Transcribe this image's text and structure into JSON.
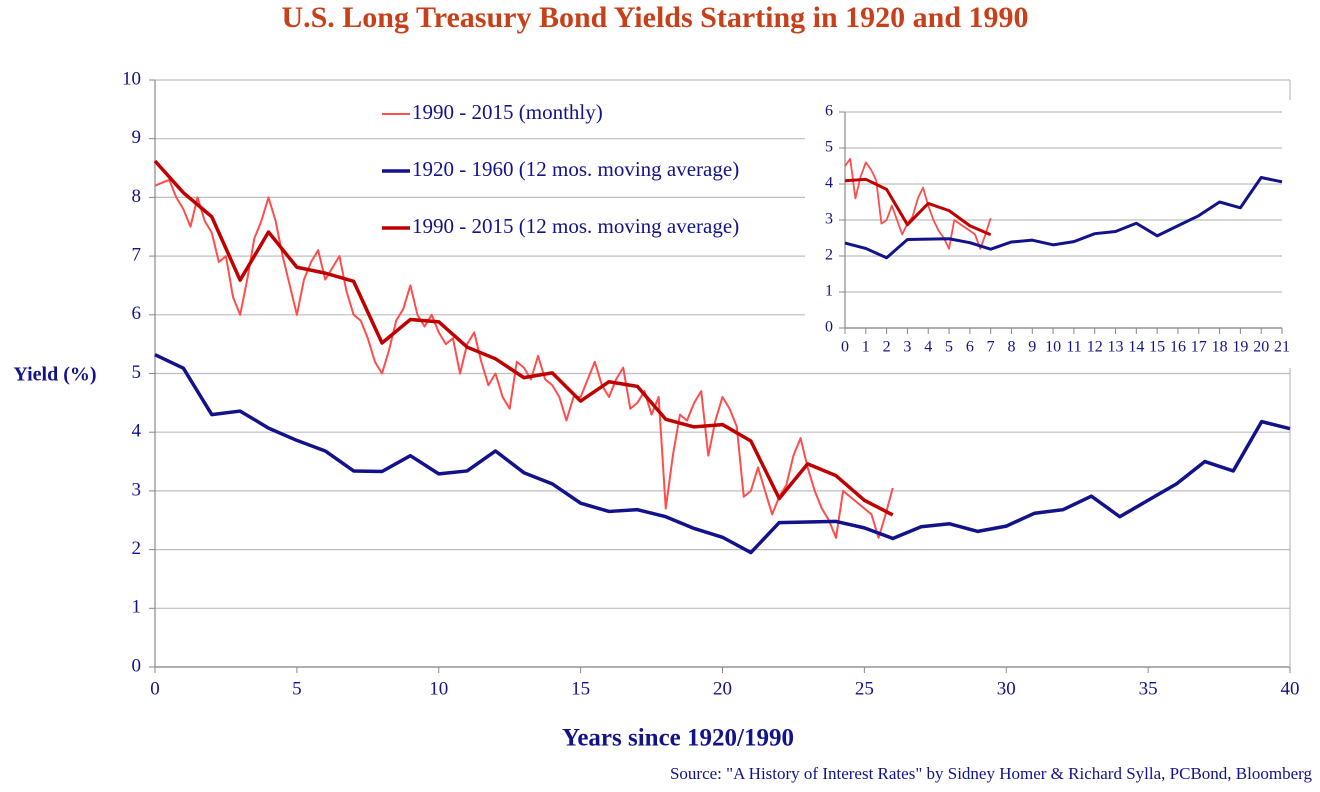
{
  "chart_data": [
    {
      "type": "line",
      "title": "U.S. Long Treasury Bond Yields Starting in 1920 and 1990",
      "y_label": "Yield (%)",
      "x_label": "Years since 1920/1990",
      "source": "Source: \"A History of Interest Rates\" by Sidney Homer & Richard Sylla, PCBond, Bloomberg",
      "xlim": [
        0,
        40
      ],
      "xticks": [
        0,
        5,
        10,
        15,
        20,
        25,
        30,
        35,
        40
      ],
      "ylim": [
        0,
        10
      ],
      "yticks": [
        0,
        1,
        2,
        3,
        4,
        5,
        6,
        7,
        8,
        9,
        10
      ],
      "grid": true,
      "series": [
        {
          "name": "1990 - 2015 (monthly)",
          "color": "#ff4d4d",
          "width": 2,
          "x": [
            0,
            0.25,
            0.5,
            0.75,
            1,
            1.25,
            1.5,
            1.75,
            2,
            2.25,
            2.5,
            2.75,
            3,
            3.25,
            3.5,
            3.75,
            4,
            4.25,
            4.5,
            4.75,
            5,
            5.25,
            5.5,
            5.75,
            6,
            6.25,
            6.5,
            6.75,
            7,
            7.25,
            7.5,
            7.75,
            8,
            8.25,
            8.5,
            8.75,
            9,
            9.25,
            9.5,
            9.75,
            10,
            10.25,
            10.5,
            10.75,
            11,
            11.25,
            11.5,
            11.75,
            12,
            12.25,
            12.5,
            12.75,
            13,
            13.25,
            13.5,
            13.75,
            14,
            14.25,
            14.5,
            14.75,
            15,
            15.25,
            15.5,
            15.75,
            16,
            16.25,
            16.5,
            16.75,
            17,
            17.25,
            17.5,
            17.75,
            18,
            18.25,
            18.5,
            18.75,
            19,
            19.25,
            19.5,
            19.75,
            20,
            20.25,
            20.5,
            20.75,
            21,
            21.25,
            21.5,
            21.75,
            22,
            22.25,
            22.5,
            22.75,
            23,
            23.25,
            23.5,
            23.75,
            24,
            24.25,
            24.5,
            24.75,
            25,
            25.25,
            25.5,
            25.75,
            26
          ],
          "values": [
            8.2,
            8.25,
            8.3,
            8.0,
            7.8,
            7.5,
            8.0,
            7.6,
            7.4,
            6.9,
            7.0,
            6.3,
            6.0,
            6.6,
            7.3,
            7.6,
            8.0,
            7.6,
            7.0,
            6.5,
            6.0,
            6.6,
            6.9,
            7.1,
            6.6,
            6.8,
            7.0,
            6.4,
            6.0,
            5.9,
            5.6,
            5.2,
            5.0,
            5.4,
            5.9,
            6.1,
            6.5,
            6.0,
            5.8,
            6.0,
            5.7,
            5.5,
            5.6,
            5.0,
            5.5,
            5.7,
            5.2,
            4.8,
            5.0,
            4.6,
            4.4,
            5.2,
            5.1,
            4.9,
            5.3,
            4.9,
            4.8,
            4.6,
            4.2,
            4.6,
            4.6,
            4.9,
            5.2,
            4.8,
            4.6,
            4.9,
            5.1,
            4.4,
            4.5,
            4.7,
            4.3,
            4.6,
            2.7,
            3.6,
            4.3,
            4.2,
            4.5,
            4.7,
            3.6,
            4.2,
            4.6,
            4.4,
            4.1,
            2.9,
            3.0,
            3.4,
            3.0,
            2.6,
            2.9,
            3.1,
            3.6,
            3.9,
            3.4,
            3.0,
            2.7,
            2.5,
            2.2,
            3.0,
            2.9,
            2.8,
            2.7,
            2.6,
            2.2,
            2.6,
            3.05
          ]
        },
        {
          "name": "1920 - 1960 (12 mos. moving average)",
          "color": "#12128a",
          "width": 3.5,
          "x": [
            0,
            1,
            2,
            3,
            4,
            5,
            6,
            7,
            8,
            9,
            10,
            11,
            12,
            13,
            14,
            15,
            16,
            17,
            18,
            19,
            20,
            21,
            22,
            23,
            24,
            25,
            26,
            27,
            28,
            29,
            30,
            31,
            32,
            33,
            34,
            35,
            36,
            37,
            38,
            39,
            40
          ],
          "values": [
            5.32,
            5.09,
            4.3,
            4.36,
            4.07,
            3.86,
            3.68,
            3.34,
            3.33,
            3.6,
            3.29,
            3.34,
            3.68,
            3.31,
            3.12,
            2.79,
            2.65,
            2.68,
            2.56,
            2.36,
            2.21,
            1.95,
            2.46,
            2.47,
            2.48,
            2.37,
            2.19,
            2.39,
            2.44,
            2.31,
            2.4,
            2.62,
            2.68,
            2.91,
            2.56,
            2.84,
            3.12,
            3.5,
            3.34,
            4.18,
            4.06
          ]
        },
        {
          "name": "1990 - 2015 (12 mos. moving average)",
          "color": "#c00000",
          "width": 3.5,
          "x": [
            0,
            1,
            2,
            3,
            4,
            5,
            6,
            7,
            8,
            9,
            10,
            11,
            12,
            13,
            14,
            15,
            16,
            17,
            18,
            19,
            20,
            21,
            22,
            23,
            24,
            25,
            26
          ],
          "values": [
            8.62,
            8.08,
            7.67,
            6.59,
            7.41,
            6.81,
            6.71,
            6.57,
            5.52,
            5.92,
            5.88,
            5.45,
            5.25,
            4.93,
            5.01,
            4.53,
            4.86,
            4.78,
            4.22,
            4.09,
            4.13,
            3.85,
            2.87,
            3.46,
            3.26,
            2.84,
            2.59
          ]
        }
      ]
    },
    {
      "type": "line",
      "xlim": [
        0,
        21
      ],
      "xticks": [
        0,
        1,
        2,
        3,
        4,
        5,
        6,
        7,
        8,
        9,
        10,
        11,
        12,
        13,
        14,
        15,
        16,
        17,
        18,
        19,
        20,
        21
      ],
      "ylim": [
        0,
        6
      ],
      "yticks": [
        0,
        1,
        2,
        3,
        4,
        5,
        6
      ],
      "grid": true,
      "series": [
        {
          "color": "#ff4d4d",
          "width": 1.8,
          "x": [
            0,
            0.25,
            0.5,
            0.75,
            1,
            1.25,
            1.5,
            1.75,
            2,
            2.25,
            2.5,
            2.75,
            3,
            3.25,
            3.5,
            3.75,
            4,
            4.25,
            4.5,
            4.75,
            5,
            5.25,
            5.5,
            5.75,
            6,
            6.25,
            6.5,
            6.75,
            7
          ],
          "values": [
            4.5,
            4.7,
            3.6,
            4.2,
            4.6,
            4.4,
            4.1,
            2.9,
            3.0,
            3.4,
            3.0,
            2.6,
            2.9,
            3.1,
            3.6,
            3.9,
            3.4,
            3.0,
            2.7,
            2.5,
            2.2,
            3.0,
            2.9,
            2.8,
            2.7,
            2.6,
            2.2,
            2.6,
            3.05
          ]
        },
        {
          "color": "#12128a",
          "width": 3,
          "x": [
            0,
            1,
            2,
            3,
            4,
            5,
            6,
            7,
            8,
            9,
            10,
            11,
            12,
            13,
            14,
            15,
            16,
            17,
            18,
            19,
            20,
            21
          ],
          "values": [
            2.36,
            2.21,
            1.95,
            2.46,
            2.47,
            2.48,
            2.37,
            2.19,
            2.39,
            2.44,
            2.31,
            2.4,
            2.62,
            2.68,
            2.91,
            2.56,
            2.84,
            3.12,
            3.5,
            3.34,
            4.18,
            4.06
          ]
        },
        {
          "color": "#c00000",
          "width": 3,
          "x": [
            0,
            1,
            2,
            3,
            4,
            5,
            6,
            7
          ],
          "values": [
            4.09,
            4.13,
            3.85,
            2.87,
            3.46,
            3.26,
            2.84,
            2.59
          ]
        }
      ]
    }
  ]
}
